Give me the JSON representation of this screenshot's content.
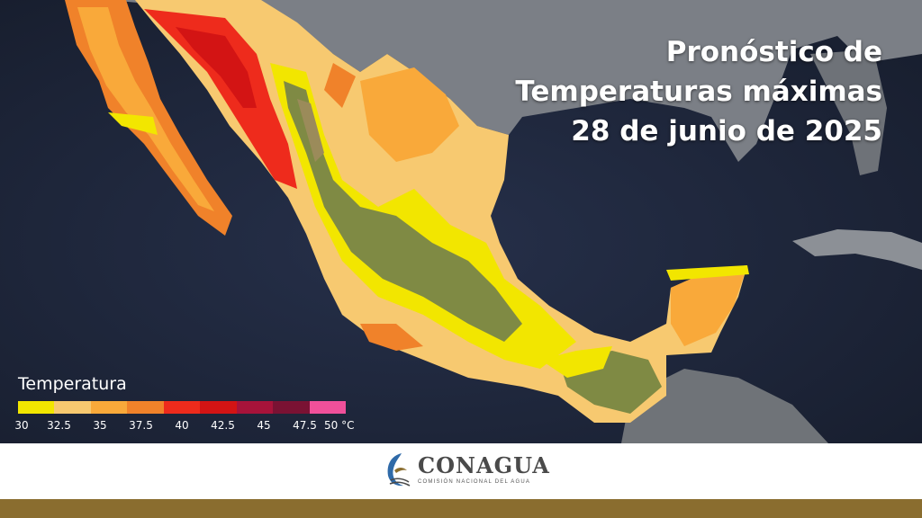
{
  "title": {
    "line1": "Pronóstico de",
    "line2": "Temperaturas máximas",
    "line3": "28 de junio de 2025"
  },
  "legend": {
    "title": "Temperatura",
    "colors": [
      "#f2e600",
      "#f7c970",
      "#f9a93a",
      "#f0822a",
      "#ee2b1c",
      "#d31414",
      "#a7133a",
      "#7a1233",
      "#f0509a"
    ],
    "ticks": [
      "30",
      "32.5",
      "35",
      "37.5",
      "40",
      "42.5",
      "45",
      "47.5",
      "50 °C"
    ]
  },
  "logo": {
    "name": "CONAGUA",
    "subtitle": "COMISIÓN NACIONAL DEL AGUA"
  }
}
